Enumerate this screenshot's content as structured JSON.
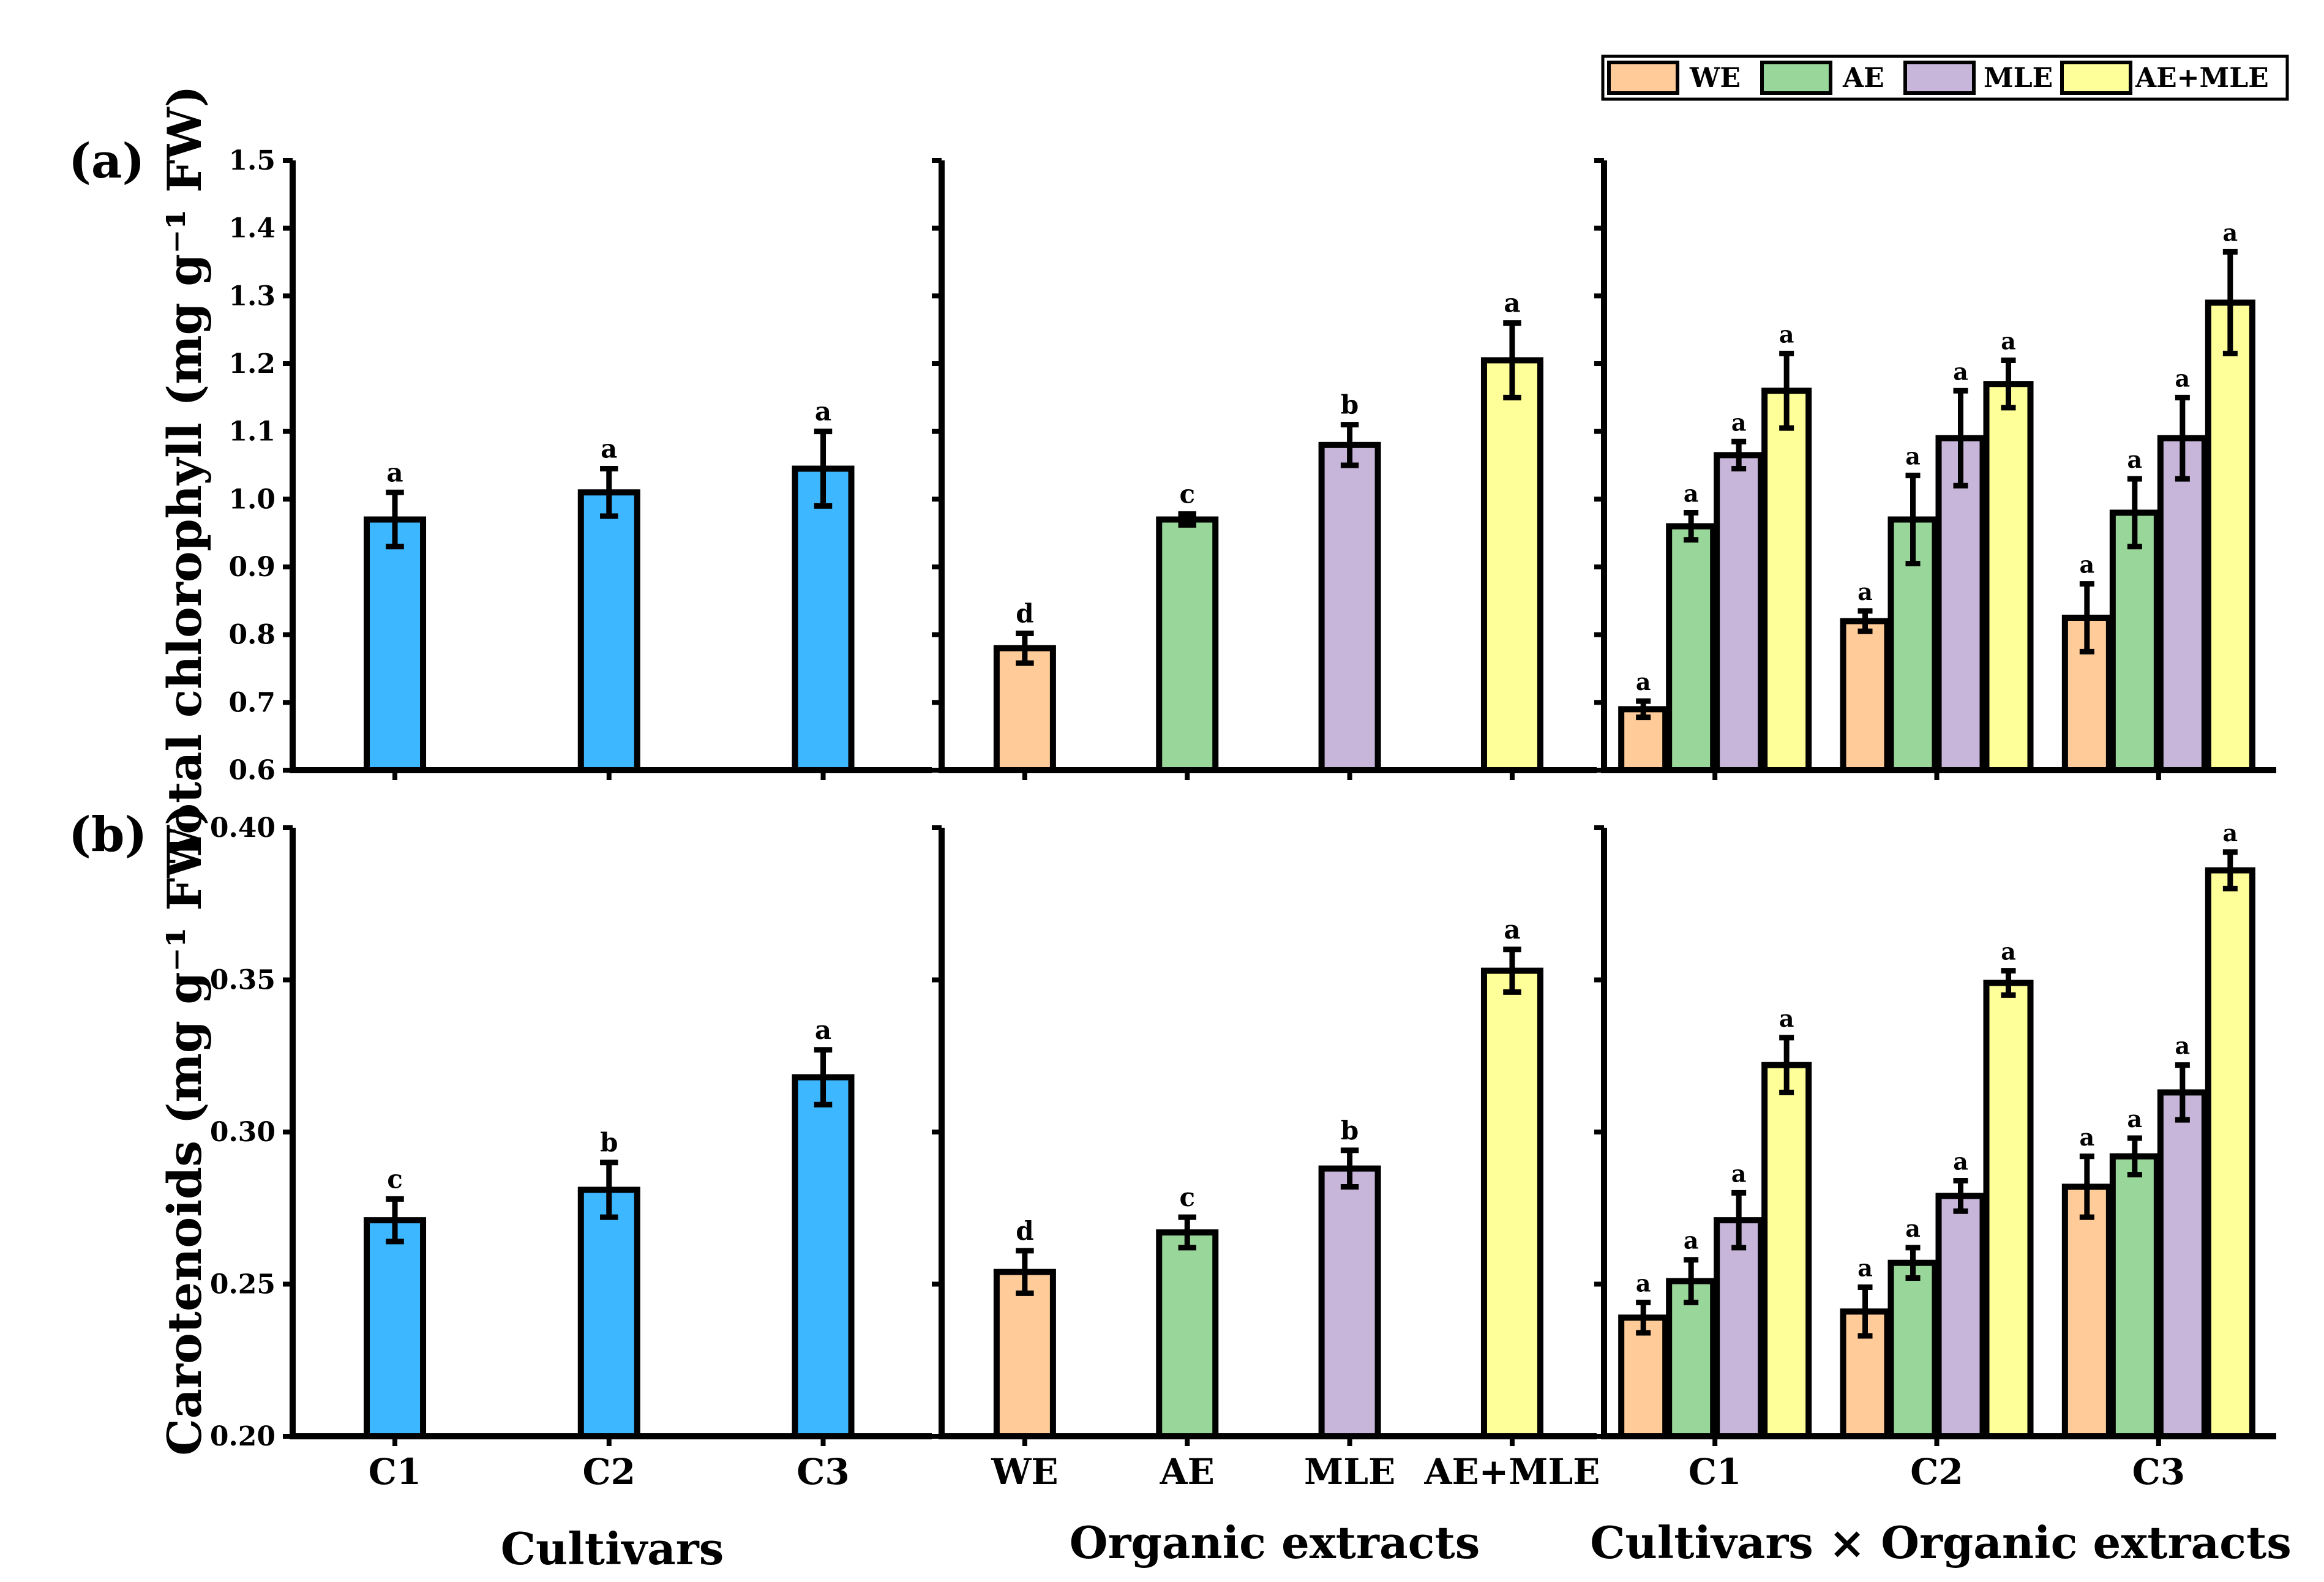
{
  "legend": {
    "items": [
      {
        "label": "WE",
        "color": "#FFCC99"
      },
      {
        "label": "AE",
        "color": "#99D699"
      },
      {
        "label": "MLE",
        "color": "#C8B6DA"
      },
      {
        "label": "AE+MLE",
        "color": "#FFFF99"
      }
    ]
  },
  "cultivar_color": "#3DB7FF",
  "panel_labels": [
    "(a)",
    "(b)"
  ],
  "group_titles": [
    "Cultivars",
    "Organic extracts",
    "Cultivars × Organic extracts"
  ],
  "cultivars": [
    "C1",
    "C2",
    "C3"
  ],
  "extracts": [
    "WE",
    "AE",
    "MLE",
    "AE+MLE"
  ],
  "chart_data": [
    {
      "type": "bar",
      "panel": "(a)",
      "ylabel": "Total chlorophyll (mg g⁻¹ FW)",
      "ylim": [
        0.6,
        1.5
      ],
      "yticks": [
        "0.6",
        "0.7",
        "0.8",
        "0.9",
        "1.0",
        "1.1",
        "1.2",
        "1.3",
        "1.4",
        "1.5"
      ],
      "cultivars": {
        "categories": [
          "C1",
          "C2",
          "C3"
        ],
        "values": [
          0.97,
          1.01,
          1.045
        ],
        "errors": [
          0.04,
          0.035,
          0.055
        ],
        "letters": [
          "a",
          "a",
          "a"
        ]
      },
      "extracts": {
        "categories": [
          "WE",
          "AE",
          "MLE",
          "AE+MLE"
        ],
        "values": [
          0.78,
          0.97,
          1.08,
          1.205
        ],
        "errors": [
          0.022,
          0.008,
          0.03,
          0.055
        ],
        "letters": [
          "d",
          "c",
          "b",
          "a"
        ]
      },
      "interaction": {
        "categories": [
          "C1",
          "C2",
          "C3"
        ],
        "series": [
          {
            "name": "WE",
            "values": [
              0.69,
              0.82,
              0.825
            ],
            "errors": [
              0.012,
              0.015,
              0.05
            ],
            "letters": [
              "a",
              "a",
              "a"
            ]
          },
          {
            "name": "AE",
            "values": [
              0.96,
              0.97,
              0.98
            ],
            "errors": [
              0.02,
              0.065,
              0.05
            ],
            "letters": [
              "a",
              "a",
              "a"
            ]
          },
          {
            "name": "MLE",
            "values": [
              1.065,
              1.09,
              1.09
            ],
            "errors": [
              0.02,
              0.07,
              0.06
            ],
            "letters": [
              "a",
              "a",
              "a"
            ]
          },
          {
            "name": "AE+MLE",
            "values": [
              1.16,
              1.17,
              1.29
            ],
            "errors": [
              0.055,
              0.035,
              0.075
            ],
            "letters": [
              "a",
              "a",
              "a"
            ]
          }
        ]
      }
    },
    {
      "type": "bar",
      "panel": "(b)",
      "ylabel": "Carotenoids (mg g⁻¹ FW)",
      "ylim": [
        0.2,
        0.4
      ],
      "yticks": [
        "0.20",
        "0.25",
        "0.30",
        "0.35",
        "0.40"
      ],
      "cultivars": {
        "categories": [
          "C1",
          "C2",
          "C3"
        ],
        "values": [
          0.271,
          0.281,
          0.318
        ],
        "errors": [
          0.007,
          0.009,
          0.009
        ],
        "letters": [
          "c",
          "b",
          "a"
        ]
      },
      "extracts": {
        "categories": [
          "WE",
          "AE",
          "MLE",
          "AE+MLE"
        ],
        "values": [
          0.254,
          0.267,
          0.288,
          0.353
        ],
        "errors": [
          0.007,
          0.005,
          0.006,
          0.007
        ],
        "letters": [
          "d",
          "c",
          "b",
          "a"
        ]
      },
      "interaction": {
        "categories": [
          "C1",
          "C2",
          "C3"
        ],
        "series": [
          {
            "name": "WE",
            "values": [
              0.239,
              0.241,
              0.282
            ],
            "errors": [
              0.005,
              0.008,
              0.01
            ],
            "letters": [
              "a",
              "a",
              "a"
            ]
          },
          {
            "name": "AE",
            "values": [
              0.251,
              0.257,
              0.292
            ],
            "errors": [
              0.007,
              0.005,
              0.006
            ],
            "letters": [
              "a",
              "a",
              "a"
            ]
          },
          {
            "name": "MLE",
            "values": [
              0.271,
              0.279,
              0.313
            ],
            "errors": [
              0.009,
              0.005,
              0.009
            ],
            "letters": [
              "a",
              "a",
              "a"
            ]
          },
          {
            "name": "AE+MLE",
            "values": [
              0.322,
              0.349,
              0.386
            ],
            "errors": [
              0.009,
              0.004,
              0.006
            ],
            "letters": [
              "a",
              "a",
              "a"
            ]
          }
        ]
      }
    }
  ]
}
